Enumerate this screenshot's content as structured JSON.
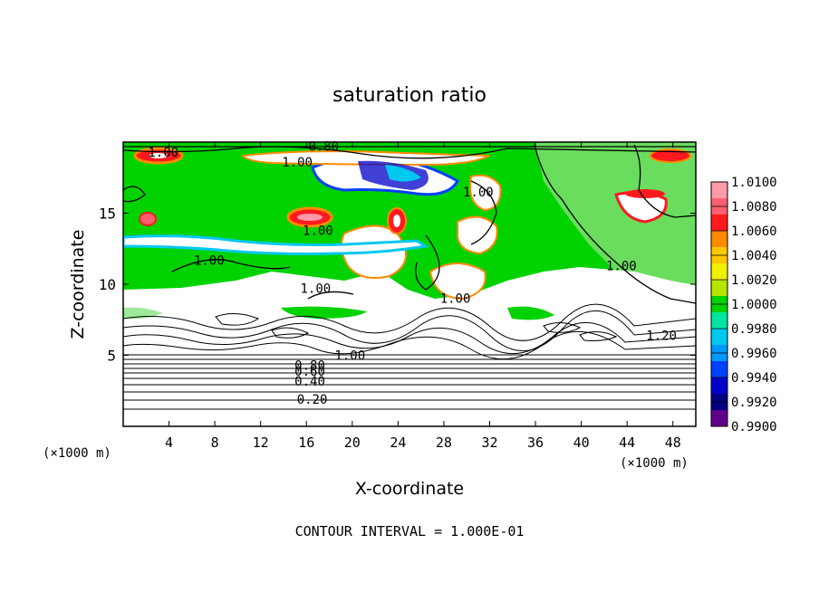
{
  "chart_data": {
    "type": "heatmap",
    "title": "saturation ratio",
    "xlabel": "X-coordinate",
    "ylabel": "Z-coordinate",
    "x_unit_left": "(×1000 m)",
    "x_unit_right": "(×1000 m)",
    "xlim": [
      0,
      50
    ],
    "ylim": [
      0,
      20
    ],
    "x_ticks": [
      {
        "value": 4,
        "label": "4"
      },
      {
        "value": 8,
        "label": "8"
      },
      {
        "value": 12,
        "label": "12"
      },
      {
        "value": 16,
        "label": "16"
      },
      {
        "value": 20,
        "label": "20"
      },
      {
        "value": 24,
        "label": "24"
      },
      {
        "value": 28,
        "label": "28"
      },
      {
        "value": 32,
        "label": "32"
      },
      {
        "value": 36,
        "label": "36"
      },
      {
        "value": 40,
        "label": "40"
      },
      {
        "value": 44,
        "label": "44"
      },
      {
        "value": 48,
        "label": "48"
      }
    ],
    "y_ticks": [
      {
        "value": 5,
        "label": "5"
      },
      {
        "value": 10,
        "label": "10"
      },
      {
        "value": 15,
        "label": "15"
      }
    ],
    "contour_labels": [
      {
        "text": "1.00",
        "x": 3.5,
        "y": 19.3
      },
      {
        "text": "0.80",
        "x": 17.5,
        "y": 19.7
      },
      {
        "text": "1.00",
        "x": 15.2,
        "y": 18.6
      },
      {
        "text": "1.00",
        "x": 31.0,
        "y": 16.5
      },
      {
        "text": "1.00",
        "x": 17.0,
        "y": 13.8
      },
      {
        "text": "1.00",
        "x": 7.5,
        "y": 11.7
      },
      {
        "text": "1.00",
        "x": 43.5,
        "y": 11.3
      },
      {
        "text": "1.00",
        "x": 16.8,
        "y": 9.7
      },
      {
        "text": "1.00",
        "x": 29.0,
        "y": 9.0
      },
      {
        "text": "1.20",
        "x": 47.0,
        "y": 6.4
      },
      {
        "text": "1.00",
        "x": 19.8,
        "y": 5.0
      },
      {
        "text": "0.80",
        "x": 16.3,
        "y": 4.3
      },
      {
        "text": "0.60",
        "x": 16.3,
        "y": 3.9
      },
      {
        "text": "0.40",
        "x": 16.3,
        "y": 3.2
      },
      {
        "text": "0.20",
        "x": 16.5,
        "y": 1.9
      }
    ],
    "colorbar": {
      "labels": [
        "1.0100",
        "1.0080",
        "1.0060",
        "1.0040",
        "1.0020",
        "1.0000",
        "0.9980",
        "0.9960",
        "0.9940",
        "0.9920",
        "0.9900"
      ],
      "colors": [
        "#ff9aa8",
        "#ff6070",
        "#ff1a20",
        "#ff8a00",
        "#ffc800",
        "#f0f000",
        "#b4e600",
        "#00d200",
        "#00e6a0",
        "#00c8f0",
        "#0098ff",
        "#0040ff",
        "#0000c8",
        "#000080",
        "#60008c"
      ]
    },
    "colors": {
      "bg": "#ffffff",
      "green": "#00d200",
      "light_green": "#a0e89a",
      "white_cloud": "#ffffff",
      "orange_edge": "#ff8a00",
      "red": "#ff1a20",
      "blue": "#0040ff",
      "cyan": "#00c8f0"
    },
    "grid": false,
    "legend": "colorbar-right"
  },
  "footer": {
    "contour_interval": "CONTOUR INTERVAL = 1.000E-01"
  }
}
